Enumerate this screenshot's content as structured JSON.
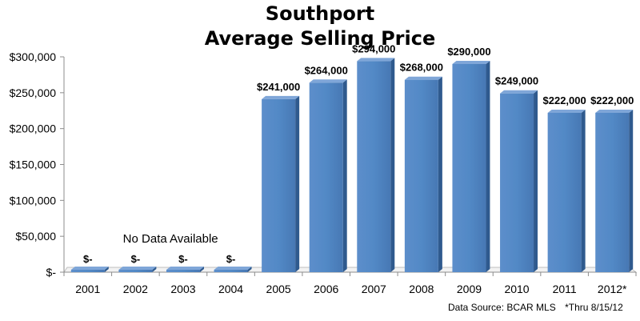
{
  "chart_data": {
    "type": "bar",
    "title_lines": [
      "Southport",
      "Average Selling Price"
    ],
    "categories": [
      "2001",
      "2002",
      "2003",
      "2004",
      "2005",
      "2006",
      "2007",
      "2008",
      "2009",
      "2010",
      "2011",
      "2012*"
    ],
    "values": [
      0,
      0,
      0,
      0,
      241000,
      264000,
      294000,
      268000,
      290000,
      249000,
      222000,
      222000
    ],
    "data_labels": [
      "$-",
      "$-",
      "$-",
      "$-",
      "$241,000",
      "$264,000",
      "$294,000",
      "$268,000",
      "$290,000",
      "$249,000",
      "$222,000",
      "$222,000"
    ],
    "y_ticks": [
      0,
      50000,
      100000,
      150000,
      200000,
      250000,
      300000
    ],
    "y_tick_labels": [
      "$-",
      "$50,000",
      "$100,000",
      "$150,000",
      "$200,000",
      "$250,000",
      "$300,000"
    ],
    "ylim": [
      0,
      300000
    ],
    "annotation": "No Data Available",
    "xlabel": "",
    "ylabel": "",
    "grid": false,
    "bar_color": "#4F81BD"
  },
  "footer": {
    "source": "Data Source: BCAR MLS",
    "note": "*Thru 8/15/12"
  }
}
